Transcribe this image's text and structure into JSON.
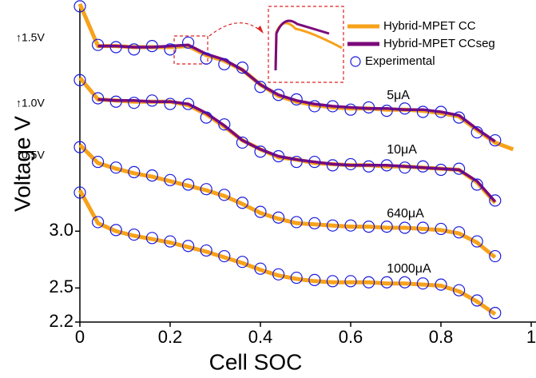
{
  "chart_data": {
    "type": "line",
    "xlabel": "Cell SOC",
    "ylabel": "Voltage V",
    "xlim": [
      0,
      1
    ],
    "xticks": [
      0,
      0.2,
      0.4,
      0.6,
      0.8,
      1
    ],
    "ylim": [
      2.2,
      5.0
    ],
    "yticks": [
      2.2,
      2.5,
      {
        "value": 3,
        "label": "3.0"
      }
    ],
    "curve_labels": [
      "5μA",
      "10μA",
      "640μA",
      "1000μA"
    ],
    "offset_labels": [
      "↑1.5V",
      "↑1.0V",
      "↑0.5V"
    ],
    "legend": "upper right",
    "x": [
      0,
      0.04,
      0.08,
      0.12,
      0.16,
      0.2,
      0.24,
      0.28,
      0.32,
      0.36,
      0.4,
      0.44,
      0.48,
      0.52,
      0.56,
      0.6,
      0.64,
      0.68,
      0.72,
      0.76,
      0.8,
      0.84,
      0.88,
      0.92,
      0.96
    ],
    "series": [
      {
        "name": "Hybrid-MPET CC",
        "color": "#f7a21b",
        "marker": "line",
        "values": [
          [
            5.0,
            4.63,
            4.63,
            4.62,
            4.62,
            4.62,
            4.63,
            4.55,
            4.5,
            4.42,
            4.29,
            4.19,
            4.14,
            4.11,
            4.09,
            4.08,
            4.08,
            4.07,
            4.07,
            4.06,
            4.04,
            4.01,
            3.89,
            3.78,
            3.72
          ],
          [
            4.35,
            4.16,
            4.15,
            4.14,
            4.14,
            4.14,
            4.11,
            4.03,
            3.92,
            3.8,
            3.72,
            3.65,
            3.63,
            3.6,
            3.59,
            3.58,
            3.58,
            3.57,
            3.57,
            3.56,
            3.55,
            3.54,
            3.43,
            3.25,
            null
          ],
          [
            3.76,
            3.6,
            3.55,
            3.51,
            3.48,
            3.44,
            3.4,
            3.36,
            3.31,
            3.24,
            3.16,
            3.11,
            3.07,
            3.06,
            3.05,
            3.04,
            3.04,
            3.03,
            3.03,
            3.02,
            3.01,
            2.98,
            2.9,
            2.77,
            null
          ],
          [
            3.36,
            3.07,
            3.0,
            2.96,
            2.93,
            2.9,
            2.86,
            2.82,
            2.77,
            2.72,
            2.66,
            2.61,
            2.58,
            2.56,
            2.55,
            2.55,
            2.55,
            2.54,
            2.54,
            2.53,
            2.52,
            2.47,
            2.38,
            2.27,
            null
          ]
        ]
      },
      {
        "name": "Hybrid-MPET CCseg",
        "color": "#7b0a7b",
        "marker": "line",
        "values": [
          [
            null,
            4.63,
            4.63,
            4.62,
            4.62,
            4.63,
            4.64,
            4.56,
            4.51,
            4.42,
            4.29,
            4.2,
            4.15,
            4.12,
            4.1,
            4.09,
            4.08,
            4.08,
            4.07,
            4.07,
            4.05,
            4.02,
            3.9,
            3.79,
            null
          ],
          [
            null,
            4.16,
            4.15,
            4.15,
            4.14,
            4.14,
            4.12,
            4.04,
            3.93,
            3.8,
            3.72,
            3.66,
            3.63,
            3.61,
            3.59,
            3.58,
            3.58,
            3.58,
            3.57,
            3.56,
            3.55,
            3.54,
            3.44,
            3.26,
            null
          ],
          [
            null,
            null,
            null,
            null,
            null,
            null,
            null,
            null,
            null,
            null,
            null,
            null,
            null,
            null,
            null,
            null,
            null,
            null,
            null,
            null,
            null,
            null,
            null,
            null,
            null
          ],
          [
            null,
            null,
            null,
            null,
            null,
            null,
            null,
            null,
            null,
            null,
            null,
            null,
            null,
            null,
            null,
            null,
            null,
            null,
            null,
            null,
            null,
            null,
            null,
            null,
            null
          ]
        ]
      },
      {
        "name": "Experimental",
        "color": "#1a1adb",
        "marker": "circle",
        "values": [
          [
            4.98,
            4.64,
            4.62,
            4.6,
            4.63,
            4.6,
            4.66,
            4.52,
            4.47,
            4.44,
            4.27,
            4.2,
            4.16,
            4.1,
            4.1,
            4.07,
            4.09,
            4.06,
            4.08,
            4.05,
            4.05,
            4.0,
            3.87,
            3.8,
            null
          ],
          [
            4.33,
            4.17,
            4.14,
            4.13,
            4.15,
            4.12,
            4.12,
            4.0,
            3.94,
            3.78,
            3.7,
            3.66,
            3.61,
            3.61,
            3.58,
            3.59,
            3.57,
            3.58,
            3.56,
            3.57,
            3.54,
            3.55,
            3.41,
            3.27,
            null
          ],
          [
            3.74,
            3.61,
            3.56,
            3.52,
            3.49,
            3.45,
            3.41,
            3.37,
            3.32,
            3.25,
            3.17,
            3.12,
            3.08,
            3.07,
            3.05,
            3.05,
            3.04,
            3.04,
            3.03,
            3.03,
            3.02,
            2.99,
            2.91,
            2.78,
            null
          ],
          [
            3.34,
            3.08,
            3.01,
            2.97,
            2.94,
            2.91,
            2.87,
            2.83,
            2.78,
            2.73,
            2.67,
            2.62,
            2.59,
            2.57,
            2.56,
            2.56,
            2.55,
            2.55,
            2.55,
            2.54,
            2.53,
            2.48,
            2.39,
            2.28,
            null
          ]
        ]
      }
    ]
  }
}
